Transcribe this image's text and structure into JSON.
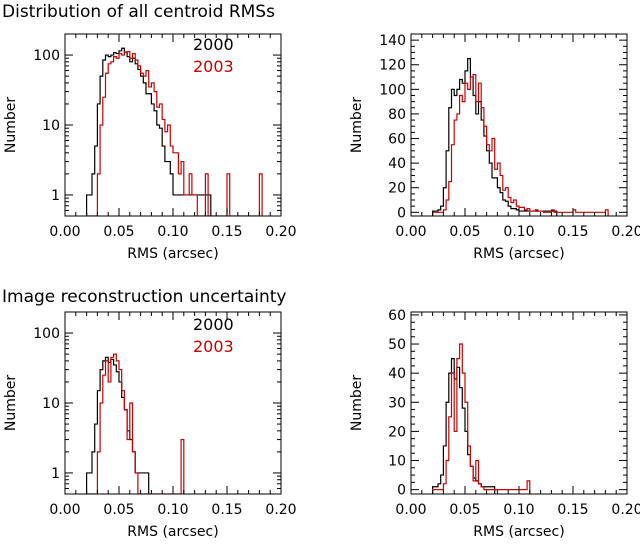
{
  "colors": {
    "y2000": "#000000",
    "y2003": "#cc0000",
    "axis": "#000000",
    "background": "#ffffff"
  },
  "chart_data": [
    {
      "type": "histogram",
      "title": "Distribution of all centroid RMSs",
      "xlabel": "RMS (arcsec)",
      "ylabel": "Number",
      "xlim": [
        0.0,
        0.2
      ],
      "ylim": [
        0.5,
        200
      ],
      "yscale": "log",
      "xticks": [
        "0.00",
        "0.05",
        "0.10",
        "0.15",
        "0.20"
      ],
      "yticks": [
        {
          "v": 1,
          "label": "1"
        },
        {
          "v": 10,
          "label": "10"
        },
        {
          "v": 100,
          "label": "100"
        }
      ],
      "legend_position": "top-right",
      "bin_start": 0.02,
      "bin_width": 0.0025,
      "series": [
        {
          "name": "2000",
          "color": "#000000",
          "counts": [
            1,
            1,
            2,
            5,
            20,
            50,
            85,
            100,
            95,
            100,
            108,
            105,
            115,
            125,
            110,
            95,
            80,
            90,
            75,
            62,
            50,
            40,
            28,
            28,
            20,
            16,
            10,
            9,
            5,
            3,
            3,
            2,
            1,
            1,
            1,
            1,
            1,
            1,
            1,
            1,
            1,
            1,
            1,
            1,
            1,
            1
          ]
        },
        {
          "name": "2003",
          "color": "#cc0000",
          "counts": [
            0,
            0,
            0,
            0,
            2,
            10,
            25,
            55,
            75,
            80,
            95,
            90,
            105,
            100,
            110,
            112,
            90,
            105,
            85,
            70,
            55,
            50,
            60,
            35,
            40,
            30,
            18,
            20,
            12,
            8,
            10,
            5,
            4,
            4,
            2,
            3,
            1,
            1,
            2,
            1,
            1,
            0,
            0,
            0,
            2,
            0,
            0,
            0,
            0,
            0,
            0,
            0,
            2,
            0,
            0,
            0,
            0,
            0,
            0,
            0,
            0,
            0,
            0,
            0,
            2
          ]
        }
      ]
    },
    {
      "type": "histogram",
      "title": "",
      "xlabel": "RMS (arcsec)",
      "ylabel": "Number",
      "xlim": [
        0.0,
        0.2
      ],
      "ylim": [
        -3,
        145
      ],
      "yscale": "linear",
      "xticks": [
        "0.00",
        "0.05",
        "0.10",
        "0.15",
        "0.20"
      ],
      "yticks": [
        {
          "v": 0,
          "label": "0"
        },
        {
          "v": 20,
          "label": "20"
        },
        {
          "v": 40,
          "label": "40"
        },
        {
          "v": 60,
          "label": "60"
        },
        {
          "v": 80,
          "label": "80"
        },
        {
          "v": 100,
          "label": "100"
        },
        {
          "v": 120,
          "label": "120"
        },
        {
          "v": 140,
          "label": "140"
        }
      ],
      "bin_start": 0.02,
      "bin_width": 0.0025,
      "series": [
        {
          "name": "2000",
          "color": "#000000",
          "counts": [
            1,
            1,
            2,
            5,
            20,
            50,
            85,
            100,
            95,
            100,
            108,
            105,
            115,
            125,
            110,
            95,
            80,
            90,
            75,
            62,
            50,
            40,
            28,
            28,
            20,
            16,
            10,
            9,
            5,
            3,
            3,
            2,
            1,
            1,
            1,
            1,
            1,
            1,
            1,
            1,
            1,
            1,
            1,
            1,
            1,
            1
          ]
        },
        {
          "name": "2003",
          "color": "#cc0000",
          "counts": [
            0,
            0,
            0,
            0,
            2,
            10,
            25,
            55,
            75,
            80,
            95,
            90,
            105,
            100,
            110,
            112,
            90,
            105,
            85,
            70,
            55,
            50,
            60,
            35,
            40,
            30,
            18,
            20,
            12,
            8,
            10,
            5,
            4,
            4,
            2,
            3,
            1,
            1,
            2,
            1,
            1,
            0,
            0,
            0,
            2,
            0,
            0,
            0,
            0,
            0,
            0,
            0,
            2,
            0,
            0,
            0,
            0,
            0,
            0,
            0,
            0,
            0,
            0,
            0,
            2
          ]
        }
      ]
    },
    {
      "type": "histogram",
      "title": "Image reconstruction uncertainty",
      "xlabel": "RMS (arcsec)",
      "ylabel": "Number",
      "xlim": [
        0.0,
        0.2
      ],
      "ylim": [
        0.5,
        200
      ],
      "yscale": "log",
      "xticks": [
        "0.00",
        "0.05",
        "0.10",
        "0.15",
        "0.20"
      ],
      "yticks": [
        {
          "v": 1,
          "label": "1"
        },
        {
          "v": 10,
          "label": "10"
        },
        {
          "v": 100,
          "label": "100"
        }
      ],
      "legend_position": "top-right",
      "bin_start": 0.02,
      "bin_width": 0.0025,
      "series": [
        {
          "name": "2000",
          "color": "#000000",
          "counts": [
            1,
            1,
            2,
            5,
            15,
            30,
            40,
            45,
            38,
            42,
            35,
            28,
            20,
            12,
            8,
            4,
            3,
            2,
            1,
            1,
            1,
            1,
            1
          ]
        },
        {
          "name": "2003",
          "color": "#cc0000",
          "counts": [
            0,
            0,
            0,
            0,
            2,
            10,
            25,
            40,
            20,
            45,
            50,
            40,
            30,
            15,
            8,
            3,
            10,
            2,
            1,
            0,
            0,
            0,
            0,
            0,
            0,
            0,
            0,
            0,
            0,
            0,
            0,
            0,
            0,
            0,
            0,
            3
          ]
        }
      ]
    },
    {
      "type": "histogram",
      "title": "",
      "xlabel": "RMS (arcsec)",
      "ylabel": "Number",
      "xlim": [
        0.0,
        0.2
      ],
      "ylim": [
        -1.5,
        61
      ],
      "yscale": "linear",
      "xticks": [
        "0.00",
        "0.05",
        "0.10",
        "0.15",
        "0.20"
      ],
      "yticks": [
        {
          "v": 0,
          "label": "0"
        },
        {
          "v": 10,
          "label": "10"
        },
        {
          "v": 20,
          "label": "20"
        },
        {
          "v": 30,
          "label": "30"
        },
        {
          "v": 40,
          "label": "40"
        },
        {
          "v": 50,
          "label": "50"
        },
        {
          "v": 60,
          "label": "60"
        }
      ],
      "bin_start": 0.02,
      "bin_width": 0.0025,
      "series": [
        {
          "name": "2000",
          "color": "#000000",
          "counts": [
            1,
            1,
            2,
            5,
            15,
            30,
            40,
            45,
            38,
            42,
            35,
            28,
            20,
            12,
            8,
            4,
            3,
            2,
            1,
            1,
            1,
            1,
            1
          ]
        },
        {
          "name": "2003",
          "color": "#cc0000",
          "counts": [
            0,
            0,
            0,
            0,
            2,
            10,
            25,
            40,
            20,
            45,
            50,
            40,
            30,
            15,
            8,
            3,
            10,
            2,
            1,
            0,
            0,
            0,
            0,
            0,
            0,
            0,
            0,
            0,
            0,
            0,
            0,
            0,
            0,
            0,
            0,
            3
          ]
        }
      ]
    }
  ]
}
